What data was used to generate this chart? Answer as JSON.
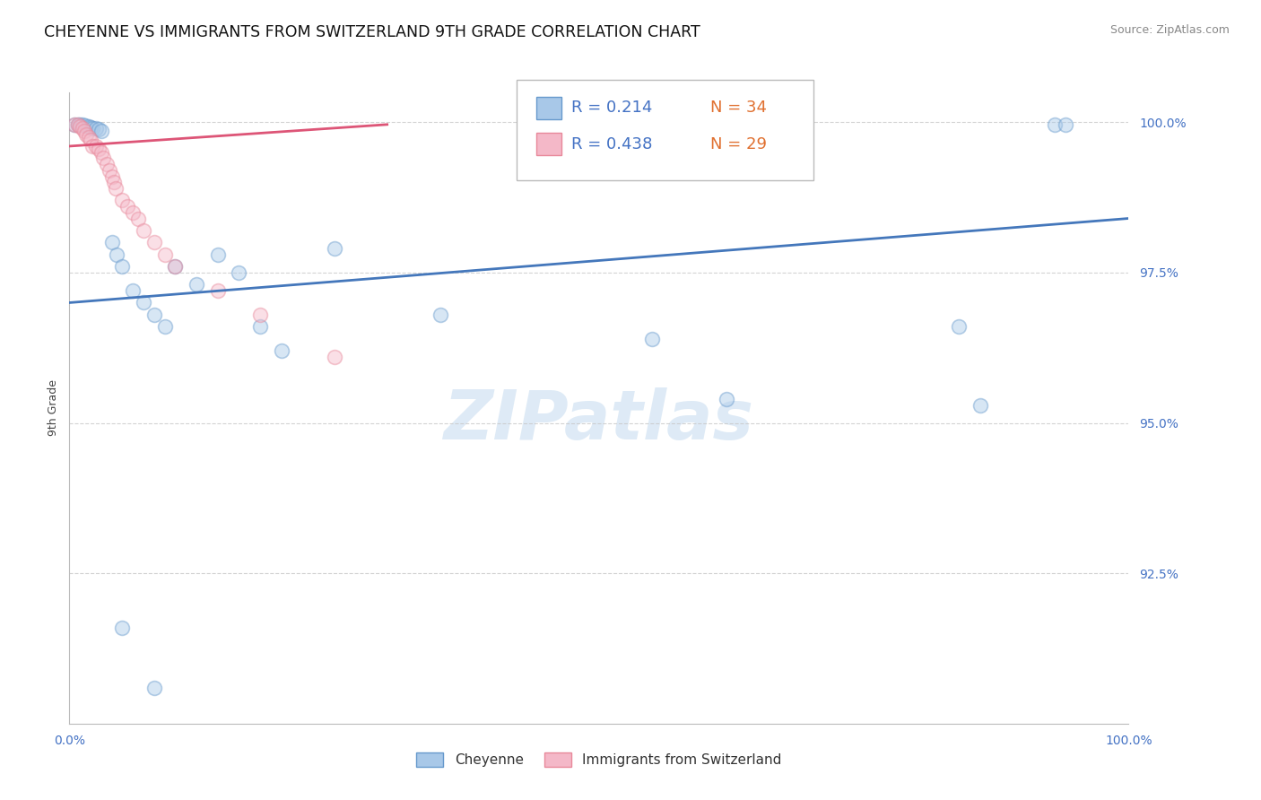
{
  "title": "CHEYENNE VS IMMIGRANTS FROM SWITZERLAND 9TH GRADE CORRELATION CHART",
  "source_text": "Source: ZipAtlas.com",
  "ylabel": "9th Grade",
  "xlim": [
    0.0,
    1.0
  ],
  "ylim": [
    0.9,
    1.005
  ],
  "y_tick_values": [
    1.0,
    0.975,
    0.95,
    0.925
  ],
  "y_tick_labels": [
    "100.0%",
    "97.5%",
    "95.0%",
    "92.5%"
  ],
  "x_tick_labels": [
    "0.0%",
    "100.0%"
  ],
  "legend_r1": "R = 0.214",
  "legend_n1": "N = 34",
  "legend_r2": "R = 0.438",
  "legend_n2": "N = 29",
  "color_blue_fill": "#a8c8e8",
  "color_blue_edge": "#6699cc",
  "color_blue_line": "#4477bb",
  "color_pink_fill": "#f4b8c8",
  "color_pink_edge": "#e8889a",
  "color_pink_line": "#dd5577",
  "color_r_text": "#4472c4",
  "color_n_text": "#e07030",
  "watermark_text": "ZIPatlas",
  "background_color": "#ffffff",
  "grid_color": "#c8c8c8",
  "blue_scatter_x": [
    0.005,
    0.008,
    0.01,
    0.012,
    0.015,
    0.018,
    0.02,
    0.022,
    0.025,
    0.028,
    0.03,
    0.04,
    0.045,
    0.05,
    0.06,
    0.07,
    0.08,
    0.09,
    0.1,
    0.12,
    0.14,
    0.16,
    0.18,
    0.2,
    0.25,
    0.35,
    0.55,
    0.62,
    0.84,
    0.86,
    0.93,
    0.94,
    0.05,
    0.08
  ],
  "blue_scatter_y": [
    0.9996,
    0.9996,
    0.9995,
    0.9996,
    0.9994,
    0.9993,
    0.9992,
    0.999,
    0.999,
    0.9988,
    0.9985,
    0.98,
    0.978,
    0.976,
    0.972,
    0.97,
    0.968,
    0.966,
    0.976,
    0.973,
    0.978,
    0.975,
    0.966,
    0.962,
    0.979,
    0.968,
    0.964,
    0.954,
    0.966,
    0.953,
    0.9996,
    0.9996,
    0.916,
    0.906
  ],
  "pink_scatter_x": [
    0.005,
    0.008,
    0.01,
    0.012,
    0.014,
    0.016,
    0.018,
    0.02,
    0.022,
    0.025,
    0.028,
    0.03,
    0.032,
    0.035,
    0.038,
    0.04,
    0.042,
    0.044,
    0.05,
    0.055,
    0.06,
    0.065,
    0.07,
    0.08,
    0.09,
    0.1,
    0.14,
    0.18,
    0.25
  ],
  "pink_scatter_y": [
    0.9996,
    0.9996,
    0.9993,
    0.999,
    0.9985,
    0.998,
    0.9975,
    0.997,
    0.996,
    0.996,
    0.9955,
    0.995,
    0.994,
    0.993,
    0.992,
    0.991,
    0.99,
    0.989,
    0.987,
    0.986,
    0.985,
    0.984,
    0.982,
    0.98,
    0.978,
    0.976,
    0.972,
    0.968,
    0.961
  ],
  "blue_line_x": [
    0.0,
    1.0
  ],
  "blue_line_y": [
    0.97,
    0.984
  ],
  "pink_line_x": [
    0.0,
    0.3
  ],
  "pink_line_y": [
    0.996,
    0.9996
  ],
  "title_fontsize": 12.5,
  "source_fontsize": 9,
  "axis_label_fontsize": 9,
  "tick_fontsize": 10,
  "legend_fontsize": 13,
  "watermark_fontsize": 55,
  "marker_size": 130,
  "marker_alpha": 0.45,
  "line_width": 2.0
}
